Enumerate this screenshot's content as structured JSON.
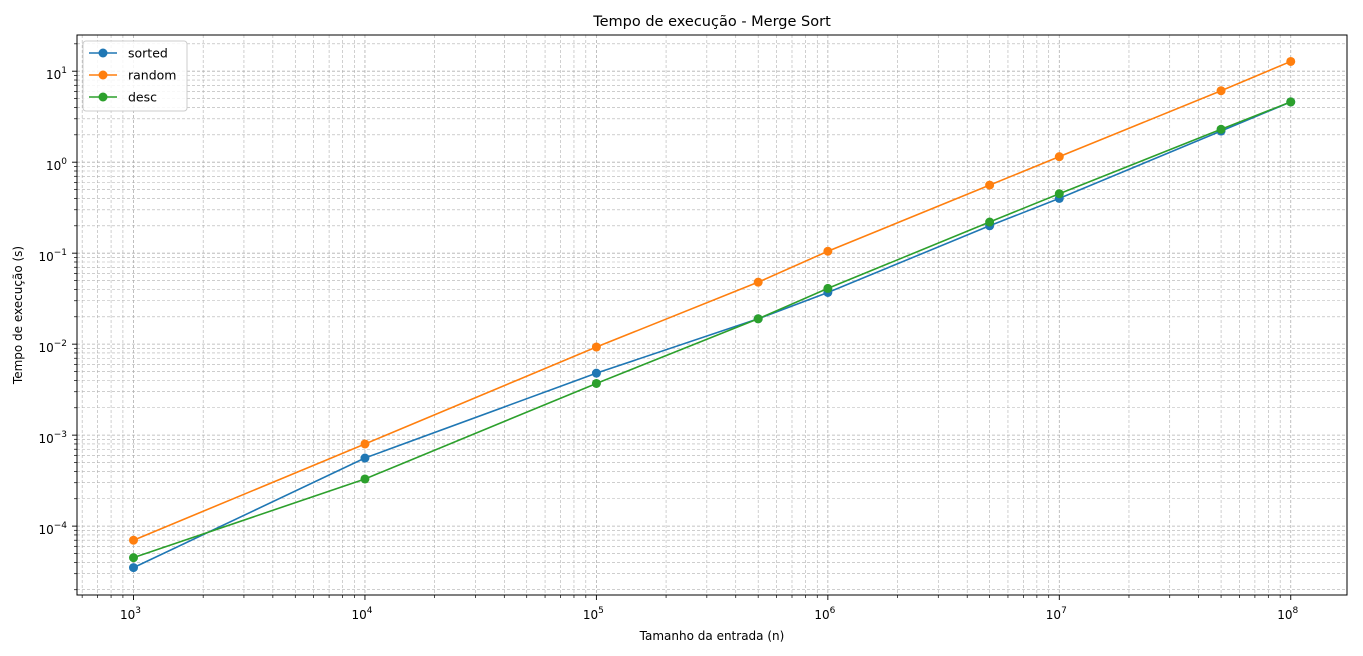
{
  "chart_data": {
    "type": "line",
    "title": "Tempo de execução - Merge Sort",
    "xlabel": "Tamanho da entrada (n)",
    "ylabel": "Tempo de execução (s)",
    "xscale": "log",
    "yscale": "log",
    "xlim": [
      570,
      175000000
    ],
    "ylim": [
      1.75e-05,
      25
    ],
    "grid": true,
    "legend_position": "top-left",
    "x": [
      1000,
      10000,
      100000,
      500000,
      1000000,
      5000000,
      10000000,
      50000000,
      100000000
    ],
    "x_ticks": [
      {
        "value": 1000,
        "base": "10",
        "exp": "3"
      },
      {
        "value": 10000,
        "base": "10",
        "exp": "4"
      },
      {
        "value": 100000,
        "base": "10",
        "exp": "5"
      },
      {
        "value": 1000000,
        "base": "10",
        "exp": "6"
      },
      {
        "value": 10000000,
        "base": "10",
        "exp": "7"
      },
      {
        "value": 100000000,
        "base": "10",
        "exp": "8"
      }
    ],
    "y_ticks": [
      {
        "value": 0.0001,
        "base": "10",
        "exp": "−4"
      },
      {
        "value": 0.001,
        "base": "10",
        "exp": "−3"
      },
      {
        "value": 0.01,
        "base": "10",
        "exp": "−2"
      },
      {
        "value": 0.1,
        "base": "10",
        "exp": "−1"
      },
      {
        "value": 1,
        "base": "10",
        "exp": "0"
      },
      {
        "value": 10,
        "base": "10",
        "exp": "1"
      }
    ],
    "series": [
      {
        "name": "sorted",
        "color": "#1f77b4",
        "values": [
          3.5e-05,
          0.00056,
          0.0048,
          0.019,
          0.037,
          0.2,
          0.4,
          2.2,
          4.6
        ]
      },
      {
        "name": "random",
        "color": "#ff7f0e",
        "values": [
          7e-05,
          0.0008,
          0.0093,
          0.048,
          0.105,
          0.56,
          1.15,
          6.1,
          12.8
        ]
      },
      {
        "name": "desc",
        "color": "#2ca02c",
        "values": [
          4.5e-05,
          0.00033,
          0.0037,
          0.019,
          0.041,
          0.22,
          0.45,
          2.3,
          4.6
        ]
      }
    ]
  }
}
